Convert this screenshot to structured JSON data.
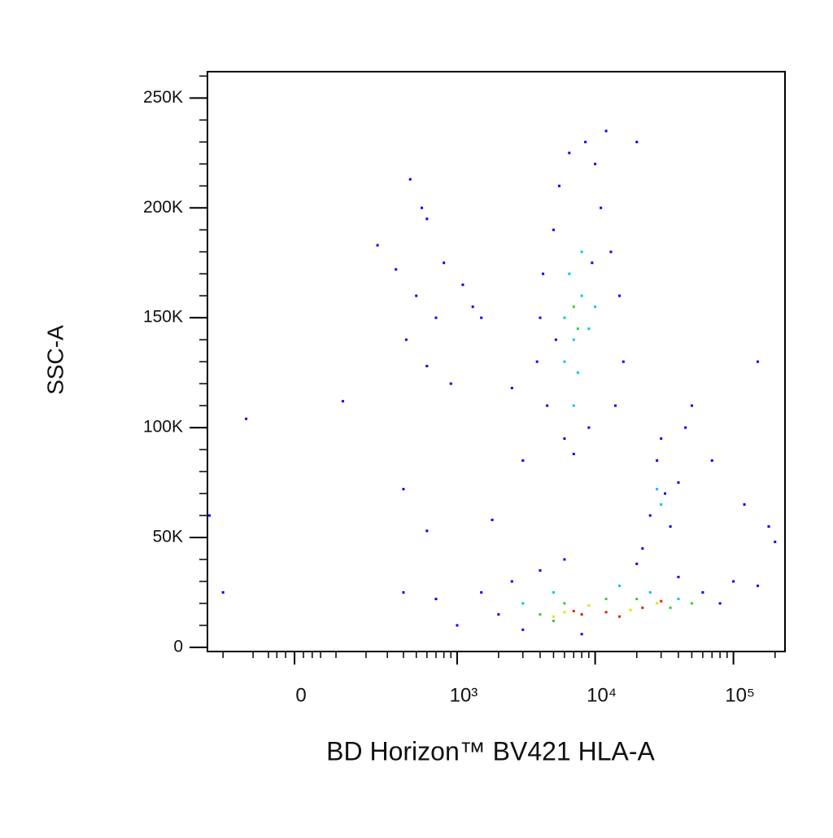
{
  "chart_data": {
    "type": "scatter",
    "xlabel": "BD Horizon™ BV421 HLA-A",
    "ylabel": "SSC-A",
    "xscale": {
      "type": "biexponential",
      "linear_width": 134
    },
    "xlim": [
      -270,
      236000
    ],
    "ylim": [
      -1900,
      262000
    ],
    "xticks": [
      0,
      {
        "value": 1000,
        "label": "10³"
      },
      {
        "value": 10000,
        "label": "10⁴"
      },
      {
        "value": 100000,
        "label": "10⁵"
      }
    ],
    "xminor_ticks": [
      -200,
      -100,
      -60,
      -40,
      -20,
      20,
      40,
      60,
      100,
      200,
      300,
      400,
      500,
      600,
      700,
      800,
      900,
      2000,
      3000,
      4000,
      5000,
      6000,
      7000,
      8000,
      9000,
      20000,
      30000,
      40000,
      50000,
      60000,
      70000,
      80000,
      90000,
      200000
    ],
    "yticks": [
      0,
      {
        "value": 50000,
        "label": "50K"
      },
      {
        "value": 100000,
        "label": "100K"
      },
      {
        "value": 150000,
        "label": "150K"
      },
      {
        "value": 200000,
        "label": "200K"
      },
      {
        "value": 250000,
        "label": "250K"
      }
    ],
    "yminor_ticks": [
      10000,
      20000,
      30000,
      40000,
      60000,
      70000,
      80000,
      90000,
      110000,
      120000,
      130000,
      140000,
      160000,
      170000,
      180000,
      190000,
      210000,
      220000,
      230000,
      240000,
      260000
    ],
    "series": [
      {
        "color": "#0000ff",
        "x": [
          350,
          420,
          500,
          600,
          700,
          800,
          900,
          1100,
          1300,
          600,
          450,
          550,
          1500,
          250,
          120,
          -120,
          400,
          600,
          1800,
          2500,
          3000,
          4000,
          4500,
          5000,
          5500,
          6000,
          6500,
          7000,
          8500,
          9000,
          10000,
          11000,
          13000,
          15000,
          16000,
          14000,
          4200,
          3800,
          12000,
          20000,
          9500,
          5200,
          25000,
          28000,
          32000,
          35000,
          30000,
          40000,
          22000,
          45000,
          50000,
          1500,
          2000,
          2500,
          3000,
          4000,
          6000,
          8000,
          20000,
          40000,
          60000,
          80000,
          100000,
          150000,
          1000,
          700,
          400,
          -200,
          -260,
          200000,
          180000,
          120000,
          70000,
          150000
        ],
        "y": [
          172000,
          140000,
          160000,
          195000,
          150000,
          175000,
          120000,
          165000,
          155000,
          128000,
          213000,
          200000,
          150000,
          183000,
          112000,
          104000,
          72000,
          53000,
          58000,
          118000,
          85000,
          150000,
          110000,
          190000,
          210000,
          95000,
          225000,
          88000,
          230000,
          100000,
          220000,
          200000,
          180000,
          160000,
          130000,
          110000,
          170000,
          130000,
          235000,
          230000,
          175000,
          140000,
          60000,
          85000,
          70000,
          55000,
          95000,
          75000,
          45000,
          100000,
          110000,
          25000,
          15000,
          30000,
          8000,
          35000,
          40000,
          6000,
          38000,
          32000,
          25000,
          20000,
          30000,
          28000,
          10000,
          22000,
          25000,
          25000,
          60000,
          48000,
          55000,
          65000,
          85000,
          130000
        ]
      },
      {
        "color": "#00c8e0",
        "x": [
          6000,
          7000,
          8000,
          7500,
          6500,
          9000,
          8000,
          7000,
          6000,
          10000,
          30000,
          28000,
          3000,
          5000,
          15000,
          25000,
          40000
        ],
        "y": [
          150000,
          140000,
          160000,
          125000,
          170000,
          145000,
          180000,
          110000,
          130000,
          155000,
          65000,
          72000,
          20000,
          25000,
          28000,
          25000,
          22000
        ]
      },
      {
        "color": "#30d030",
        "x": [
          7500,
          7000,
          4000,
          6000,
          12000,
          20000,
          35000,
          5000,
          50000
        ],
        "y": [
          145000,
          155000,
          15000,
          20000,
          22000,
          22000,
          18000,
          12000,
          20000
        ]
      },
      {
        "color": "#e8e000",
        "x": [
          6000,
          9000,
          18000,
          28000,
          5000
        ],
        "y": [
          16000,
          19000,
          17000,
          20000,
          14000
        ]
      },
      {
        "color": "#e02000",
        "x": [
          8000,
          12000,
          15000,
          22000,
          7000,
          30000
        ],
        "y": [
          15000,
          16000,
          14000,
          18000,
          16500,
          21000
        ]
      }
    ]
  }
}
